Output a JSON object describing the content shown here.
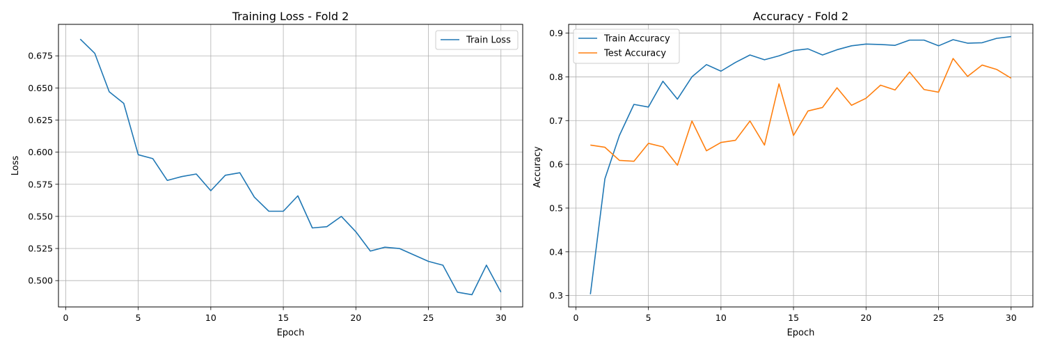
{
  "chart_data": [
    {
      "type": "line",
      "title": "Training Loss - Fold 2",
      "xlabel": "Epoch",
      "ylabel": "Loss",
      "xlim": [
        -0.5,
        31.5
      ],
      "ylim": [
        0.4795,
        0.6995
      ],
      "x_ticks": [
        0,
        5,
        10,
        15,
        20,
        25,
        30
      ],
      "y_ticks": [
        0.5,
        0.525,
        0.55,
        0.575,
        0.6,
        0.625,
        0.65,
        0.675
      ],
      "y_tick_labels": [
        "0.500",
        "0.525",
        "0.550",
        "0.575",
        "0.600",
        "0.625",
        "0.650",
        "0.675"
      ],
      "grid": true,
      "legend_position": "upper right",
      "x": [
        1,
        2,
        3,
        4,
        5,
        6,
        7,
        8,
        9,
        10,
        11,
        12,
        13,
        14,
        15,
        16,
        17,
        18,
        19,
        20,
        21,
        22,
        23,
        24,
        25,
        26,
        27,
        28,
        29,
        30
      ],
      "series": [
        {
          "name": "Train Loss",
          "color": "#1f77b4",
          "values": [
            0.688,
            0.677,
            0.647,
            0.638,
            0.598,
            0.595,
            0.578,
            0.581,
            0.583,
            0.57,
            0.582,
            0.584,
            0.565,
            0.554,
            0.554,
            0.566,
            0.541,
            0.542,
            0.55,
            0.538,
            0.523,
            0.526,
            0.525,
            0.52,
            0.515,
            0.512,
            0.491,
            0.489,
            0.512,
            0.491
          ]
        }
      ]
    },
    {
      "type": "line",
      "title": "Accuracy - Fold 2",
      "xlabel": "Epoch",
      "ylabel": "Accuracy",
      "xlim": [
        -0.5,
        31.5
      ],
      "ylim": [
        0.274,
        0.92
      ],
      "x_ticks": [
        0,
        5,
        10,
        15,
        20,
        25,
        30
      ],
      "y_ticks": [
        0.3,
        0.4,
        0.5,
        0.6,
        0.7,
        0.8,
        0.9
      ],
      "y_tick_labels": [
        "0.3",
        "0.4",
        "0.5",
        "0.6",
        "0.7",
        "0.8",
        "0.9"
      ],
      "grid": true,
      "legend_position": "upper left",
      "x": [
        1,
        2,
        3,
        4,
        5,
        6,
        7,
        8,
        9,
        10,
        11,
        12,
        13,
        14,
        15,
        16,
        17,
        18,
        19,
        20,
        21,
        22,
        23,
        24,
        25,
        26,
        27,
        28,
        29,
        30
      ],
      "series": [
        {
          "name": "Train Accuracy",
          "color": "#1f77b4",
          "values": [
            0.303,
            0.567,
            0.666,
            0.737,
            0.731,
            0.79,
            0.749,
            0.8,
            0.828,
            0.813,
            0.833,
            0.85,
            0.839,
            0.848,
            0.86,
            0.864,
            0.85,
            0.862,
            0.871,
            0.875,
            0.874,
            0.872,
            0.884,
            0.884,
            0.871,
            0.885,
            0.877,
            0.878,
            0.888,
            0.892
          ]
        },
        {
          "name": "Test Accuracy",
          "color": "#ff7f0e",
          "values": [
            0.644,
            0.639,
            0.609,
            0.607,
            0.648,
            0.64,
            0.598,
            0.699,
            0.631,
            0.65,
            0.655,
            0.699,
            0.644,
            0.784,
            0.666,
            0.722,
            0.73,
            0.775,
            0.735,
            0.751,
            0.781,
            0.77,
            0.811,
            0.771,
            0.765,
            0.842,
            0.801,
            0.827,
            0.817,
            0.797
          ]
        }
      ]
    }
  ]
}
